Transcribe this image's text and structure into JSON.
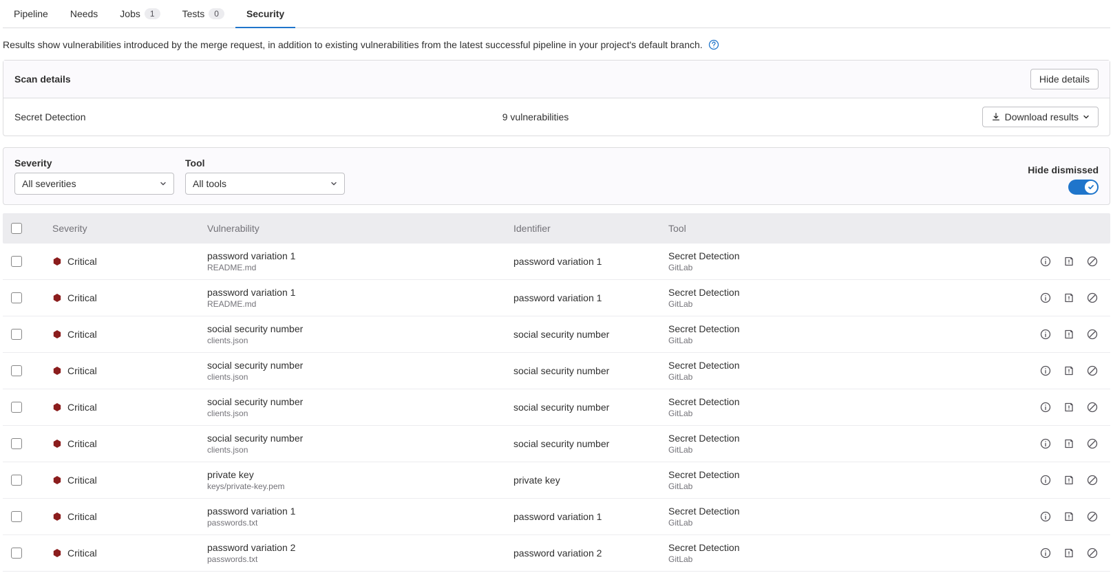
{
  "colors": {
    "accent": "#1f75cb",
    "critical": "#8b1d1d",
    "border": "#dcdcde",
    "muted_text": "#737278",
    "bg_subtle": "#fbfafd",
    "bg_header": "#ececef"
  },
  "tabs": [
    {
      "label": "Pipeline",
      "badge": null,
      "active": false
    },
    {
      "label": "Needs",
      "badge": null,
      "active": false
    },
    {
      "label": "Jobs",
      "badge": "1",
      "active": false
    },
    {
      "label": "Tests",
      "badge": "0",
      "active": false
    },
    {
      "label": "Security",
      "badge": null,
      "active": true
    }
  ],
  "description": "Results show vulnerabilities introduced by the merge request, in addition to existing vulnerabilities from the latest successful pipeline in your project's default branch.",
  "scan_details": {
    "title": "Scan details",
    "hide_button": "Hide details",
    "scanner": "Secret Detection",
    "count": "9 vulnerabilities",
    "download_button": "Download results"
  },
  "filters": {
    "severity": {
      "label": "Severity",
      "value": "All severities"
    },
    "tool": {
      "label": "Tool",
      "value": "All tools"
    },
    "hide_dismissed": {
      "label": "Hide dismissed",
      "on": true
    }
  },
  "table": {
    "headers": {
      "severity": "Severity",
      "vulnerability": "Vulnerability",
      "identifier": "Identifier",
      "tool": "Tool"
    },
    "rows": [
      {
        "severity": "Critical",
        "vuln_name": "password variation 1",
        "vuln_file": "README.md",
        "identifier": "password variation 1",
        "tool_name": "Secret Detection",
        "tool_sub": "GitLab"
      },
      {
        "severity": "Critical",
        "vuln_name": "password variation 1",
        "vuln_file": "README.md",
        "identifier": "password variation 1",
        "tool_name": "Secret Detection",
        "tool_sub": "GitLab"
      },
      {
        "severity": "Critical",
        "vuln_name": "social security number",
        "vuln_file": "clients.json",
        "identifier": "social security number",
        "tool_name": "Secret Detection",
        "tool_sub": "GitLab"
      },
      {
        "severity": "Critical",
        "vuln_name": "social security number",
        "vuln_file": "clients.json",
        "identifier": "social security number",
        "tool_name": "Secret Detection",
        "tool_sub": "GitLab"
      },
      {
        "severity": "Critical",
        "vuln_name": "social security number",
        "vuln_file": "clients.json",
        "identifier": "social security number",
        "tool_name": "Secret Detection",
        "tool_sub": "GitLab"
      },
      {
        "severity": "Critical",
        "vuln_name": "social security number",
        "vuln_file": "clients.json",
        "identifier": "social security number",
        "tool_name": "Secret Detection",
        "tool_sub": "GitLab"
      },
      {
        "severity": "Critical",
        "vuln_name": "private key",
        "vuln_file": "keys/private-key.pem",
        "identifier": "private key",
        "tool_name": "Secret Detection",
        "tool_sub": "GitLab"
      },
      {
        "severity": "Critical",
        "vuln_name": "password variation 1",
        "vuln_file": "passwords.txt",
        "identifier": "password variation 1",
        "tool_name": "Secret Detection",
        "tool_sub": "GitLab"
      },
      {
        "severity": "Critical",
        "vuln_name": "password variation 2",
        "vuln_file": "passwords.txt",
        "identifier": "password variation 2",
        "tool_name": "Secret Detection",
        "tool_sub": "GitLab"
      }
    ]
  }
}
